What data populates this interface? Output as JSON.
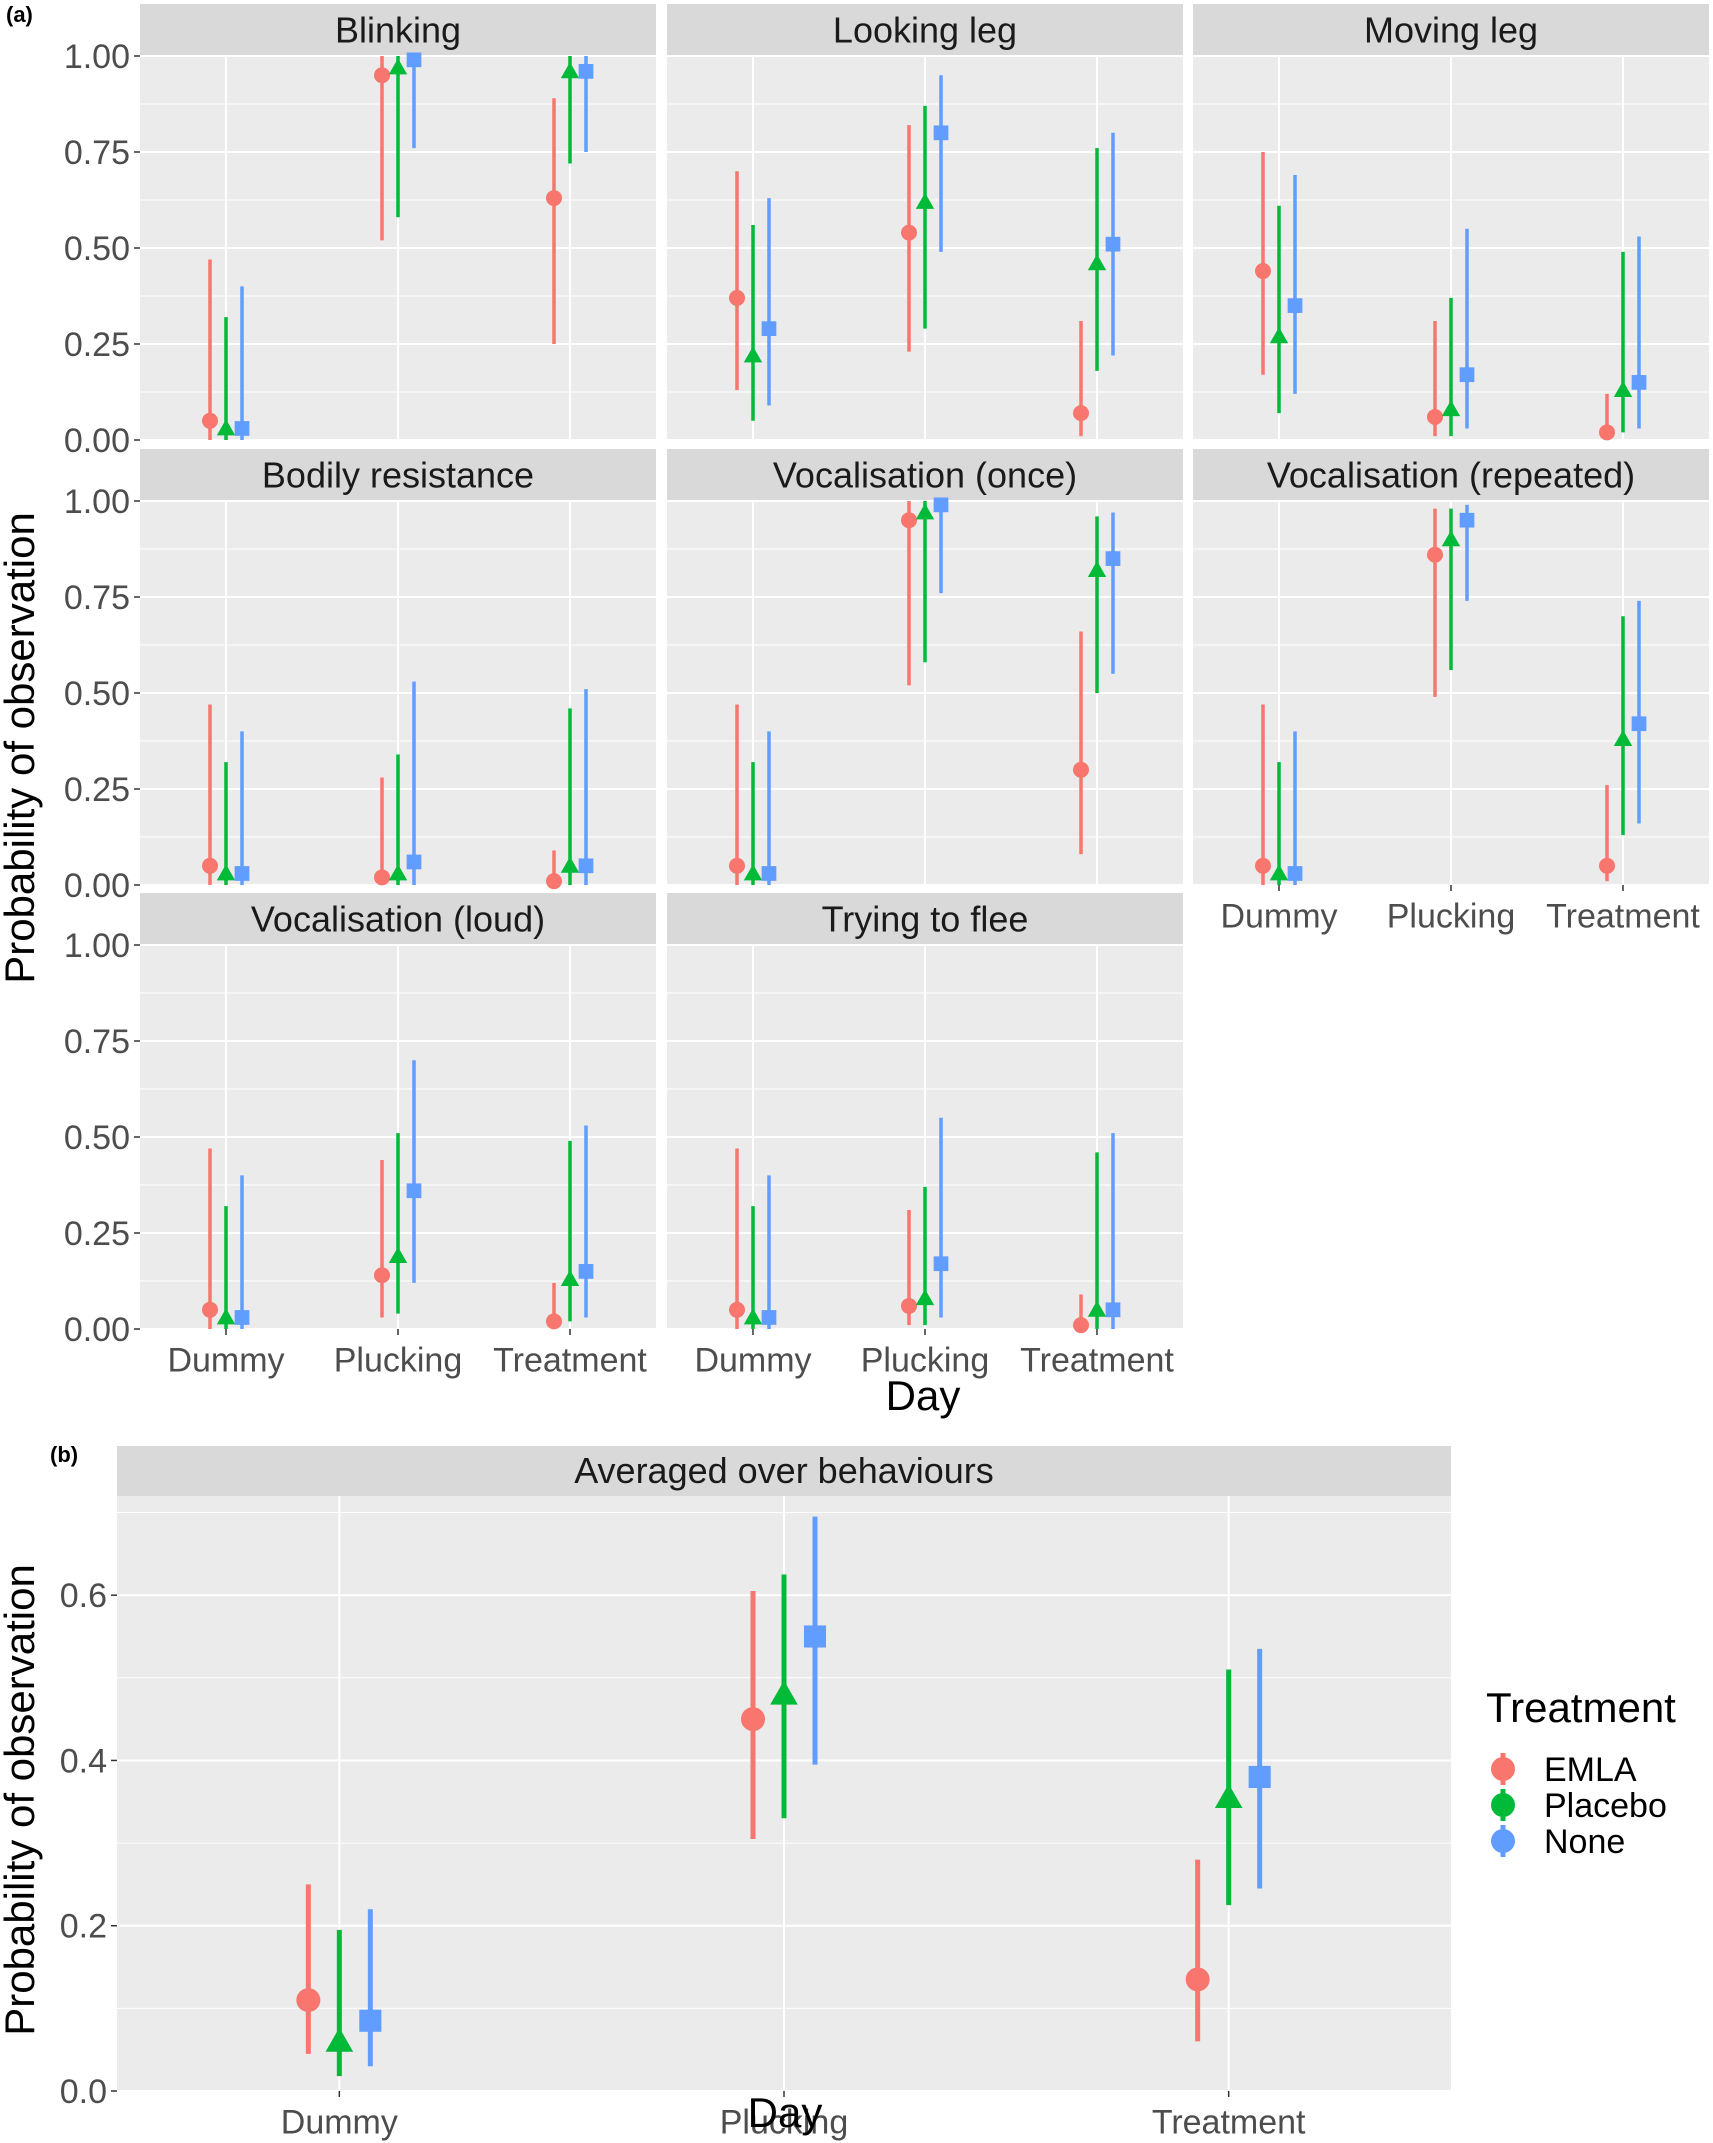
{
  "figure": {
    "panel_a_label": "(a)",
    "panel_b_label": "(b)",
    "ylabel": "Probability of observation",
    "xlabel": "Day",
    "legend_title": "Treatment",
    "legend_position": "right",
    "treatment_colors": {
      "EMLA": "#F8766D",
      "Placebo": "#00BA38",
      "None": "#619CFF"
    },
    "treatment_shapes": {
      "EMLA": "circle",
      "Placebo": "triangle",
      "None": "square"
    },
    "background": "#EBEBEB",
    "strip_color": "#D9D9D9"
  },
  "chart_data": [
    {
      "type": "scatter",
      "panel": "(a)",
      "error_bars": true,
      "categories": [
        "Dummy",
        "Plucking",
        "Treatment"
      ],
      "series_names": [
        "EMLA",
        "Placebo",
        "None"
      ],
      "ylim": [
        0,
        1
      ],
      "yticks": [
        "0.00",
        "0.25",
        "0.50",
        "0.75",
        "1.00"
      ],
      "ylabel": "Probability of observation",
      "xlabel": "Day",
      "grid": true,
      "facets": [
        {
          "title": "Blinking",
          "series": [
            {
              "name": "EMLA",
              "values": [
                0.05,
                0.95,
                0.63
              ],
              "lower": [
                0.0,
                0.52,
                0.25
              ],
              "upper": [
                0.47,
                1.0,
                0.89
              ]
            },
            {
              "name": "Placebo",
              "values": [
                0.03,
                0.97,
                0.96
              ],
              "lower": [
                0.0,
                0.58,
                0.72
              ],
              "upper": [
                0.32,
                1.0,
                1.0
              ]
            },
            {
              "name": "None",
              "values": [
                0.03,
                0.99,
                0.96
              ],
              "lower": [
                0.0,
                0.76,
                0.75
              ],
              "upper": [
                0.4,
                1.0,
                1.0
              ]
            }
          ]
        },
        {
          "title": "Looking leg",
          "series": [
            {
              "name": "EMLA",
              "values": [
                0.37,
                0.54,
                0.07
              ],
              "lower": [
                0.13,
                0.23,
                0.01
              ],
              "upper": [
                0.7,
                0.82,
                0.31
              ]
            },
            {
              "name": "Placebo",
              "values": [
                0.22,
                0.62,
                0.46
              ],
              "lower": [
                0.05,
                0.29,
                0.18
              ],
              "upper": [
                0.56,
                0.87,
                0.76
              ]
            },
            {
              "name": "None",
              "values": [
                0.29,
                0.8,
                0.51
              ],
              "lower": [
                0.09,
                0.49,
                0.22
              ],
              "upper": [
                0.63,
                0.95,
                0.8
              ]
            }
          ]
        },
        {
          "title": "Moving leg",
          "series": [
            {
              "name": "EMLA",
              "values": [
                0.44,
                0.06,
                0.02
              ],
              "lower": [
                0.17,
                0.01,
                0.0
              ],
              "upper": [
                0.75,
                0.31,
                0.12
              ]
            },
            {
              "name": "Placebo",
              "values": [
                0.27,
                0.08,
                0.13
              ],
              "lower": [
                0.07,
                0.01,
                0.02
              ],
              "upper": [
                0.61,
                0.37,
                0.49
              ]
            },
            {
              "name": "None",
              "values": [
                0.35,
                0.17,
                0.15
              ],
              "lower": [
                0.12,
                0.03,
                0.03
              ],
              "upper": [
                0.69,
                0.55,
                0.53
              ]
            }
          ]
        },
        {
          "title": "Bodily resistance",
          "series": [
            {
              "name": "EMLA",
              "values": [
                0.05,
                0.02,
                0.01
              ],
              "lower": [
                0.0,
                0.0,
                0.0
              ],
              "upper": [
                0.47,
                0.28,
                0.09
              ]
            },
            {
              "name": "Placebo",
              "values": [
                0.03,
                0.03,
                0.05
              ],
              "lower": [
                0.0,
                0.0,
                0.0
              ],
              "upper": [
                0.32,
                0.34,
                0.46
              ]
            },
            {
              "name": "None",
              "values": [
                0.03,
                0.06,
                0.05
              ],
              "lower": [
                0.0,
                0.0,
                0.0
              ],
              "upper": [
                0.4,
                0.53,
                0.51
              ]
            }
          ]
        },
        {
          "title": "Vocalisation (once)",
          "series": [
            {
              "name": "EMLA",
              "values": [
                0.05,
                0.95,
                0.3
              ],
              "lower": [
                0.0,
                0.52,
                0.08
              ],
              "upper": [
                0.47,
                1.0,
                0.66
              ]
            },
            {
              "name": "Placebo",
              "values": [
                0.03,
                0.97,
                0.82
              ],
              "lower": [
                0.0,
                0.58,
                0.5
              ],
              "upper": [
                0.32,
                1.0,
                0.96
              ]
            },
            {
              "name": "None",
              "values": [
                0.03,
                0.99,
                0.85
              ],
              "lower": [
                0.0,
                0.76,
                0.55
              ],
              "upper": [
                0.4,
                1.0,
                0.97
              ]
            }
          ]
        },
        {
          "title": "Vocalisation (repeated)",
          "series": [
            {
              "name": "EMLA",
              "values": [
                0.05,
                0.86,
                0.05
              ],
              "lower": [
                0.0,
                0.49,
                0.01
              ],
              "upper": [
                0.47,
                0.98,
                0.26
              ]
            },
            {
              "name": "Placebo",
              "values": [
                0.03,
                0.9,
                0.38
              ],
              "lower": [
                0.0,
                0.56,
                0.13
              ],
              "upper": [
                0.32,
                0.98,
                0.7
              ]
            },
            {
              "name": "None",
              "values": [
                0.03,
                0.95,
                0.42
              ],
              "lower": [
                0.0,
                0.74,
                0.16
              ],
              "upper": [
                0.4,
                0.99,
                0.74
              ]
            }
          ]
        },
        {
          "title": "Vocalisation (loud)",
          "series": [
            {
              "name": "EMLA",
              "values": [
                0.05,
                0.14,
                0.02
              ],
              "lower": [
                0.0,
                0.03,
                0.0
              ],
              "upper": [
                0.47,
                0.44,
                0.12
              ]
            },
            {
              "name": "Placebo",
              "values": [
                0.03,
                0.19,
                0.13
              ],
              "lower": [
                0.0,
                0.04,
                0.02
              ],
              "upper": [
                0.32,
                0.51,
                0.49
              ]
            },
            {
              "name": "None",
              "values": [
                0.03,
                0.36,
                0.15
              ],
              "lower": [
                0.0,
                0.12,
                0.03
              ],
              "upper": [
                0.4,
                0.7,
                0.53
              ]
            }
          ]
        },
        {
          "title": "Trying to flee",
          "series": [
            {
              "name": "EMLA",
              "values": [
                0.05,
                0.06,
                0.01
              ],
              "lower": [
                0.0,
                0.01,
                0.0
              ],
              "upper": [
                0.47,
                0.31,
                0.09
              ]
            },
            {
              "name": "Placebo",
              "values": [
                0.03,
                0.08,
                0.05
              ],
              "lower": [
                0.0,
                0.01,
                0.0
              ],
              "upper": [
                0.32,
                0.37,
                0.46
              ]
            },
            {
              "name": "None",
              "values": [
                0.03,
                0.17,
                0.05
              ],
              "lower": [
                0.0,
                0.03,
                0.0
              ],
              "upper": [
                0.4,
                0.55,
                0.51
              ]
            }
          ]
        }
      ]
    },
    {
      "type": "scatter",
      "panel": "(b)",
      "error_bars": true,
      "title": "Averaged over behaviours",
      "categories": [
        "Dummy",
        "Plucking",
        "Treatment"
      ],
      "ylim": [
        0,
        0.72
      ],
      "yticks": [
        "0.0",
        "0.2",
        "0.4",
        "0.6"
      ],
      "ylabel": "Probability of observation",
      "xlabel": "Day",
      "grid": true,
      "legend": {
        "title": "Treatment",
        "entries": [
          "EMLA",
          "Placebo",
          "None"
        ],
        "position": "right"
      },
      "series": [
        {
          "name": "EMLA",
          "values": [
            0.11,
            0.45,
            0.135
          ],
          "lower": [
            0.045,
            0.305,
            0.06
          ],
          "upper": [
            0.25,
            0.605,
            0.28
          ]
        },
        {
          "name": "Placebo",
          "values": [
            0.06,
            0.48,
            0.355
          ],
          "lower": [
            0.018,
            0.33,
            0.225
          ],
          "upper": [
            0.195,
            0.625,
            0.51
          ]
        },
        {
          "name": "None",
          "values": [
            0.085,
            0.55,
            0.38
          ],
          "lower": [
            0.03,
            0.395,
            0.245
          ],
          "upper": [
            0.22,
            0.695,
            0.535
          ]
        }
      ]
    }
  ]
}
